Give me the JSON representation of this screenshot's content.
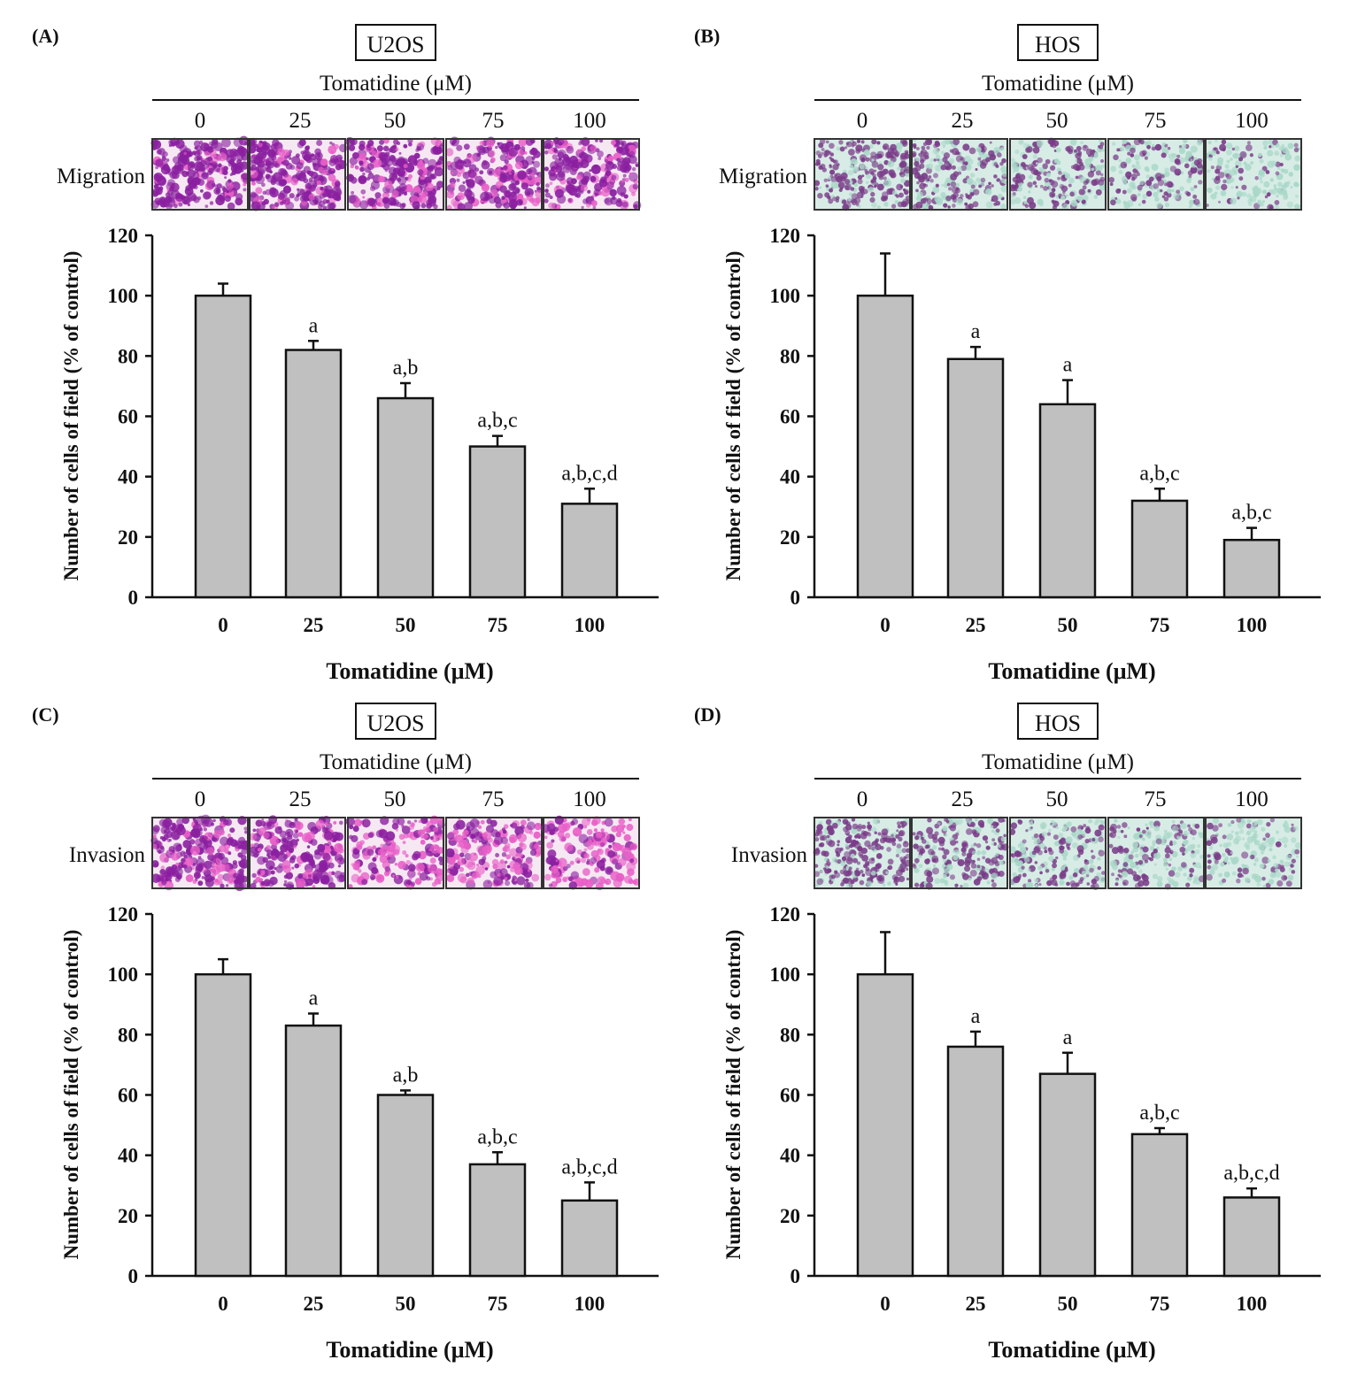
{
  "figure": {
    "treatment_label": "Tomatidine (μM)",
    "concentration_labels": [
      "0",
      "25",
      "50",
      "75",
      "100"
    ]
  },
  "colors": {
    "bar_fill": "#c0c0c0",
    "u2os_stain_dark": "#8a1fa0",
    "u2os_stain_light": "#e85fc8",
    "hos_stain_dark": "#7a3c88",
    "hos_stain_light": "#a9d8c8"
  },
  "panels": [
    {
      "label": "(A)",
      "cell_line": "U2OS",
      "assay": "Migration",
      "stain": "u2os",
      "image_density": [
        0.9,
        0.85,
        0.75,
        0.7,
        0.72
      ]
    },
    {
      "label": "(B)",
      "cell_line": "HOS",
      "assay": "Migration",
      "stain": "hos",
      "image_density": [
        0.8,
        0.7,
        0.6,
        0.45,
        0.35
      ]
    },
    {
      "label": "(C)",
      "cell_line": "U2OS",
      "assay": "Invasion",
      "stain": "u2os",
      "image_density": [
        0.8,
        0.75,
        0.45,
        0.5,
        0.35
      ]
    },
    {
      "label": "(D)",
      "cell_line": "HOS",
      "assay": "Invasion",
      "stain": "hos",
      "image_density": [
        0.85,
        0.65,
        0.6,
        0.5,
        0.35
      ]
    }
  ],
  "chart_data": [
    {
      "type": "bar",
      "panel": "(A)",
      "title": "U2OS Migration",
      "categories": [
        "0",
        "25",
        "50",
        "75",
        "100"
      ],
      "values": [
        100,
        82,
        66,
        50,
        31
      ],
      "errors": [
        4,
        3,
        5,
        3.5,
        5
      ],
      "significance": [
        "",
        "a",
        "a,b",
        "a,b,c",
        "a,b,c,d"
      ],
      "xlabel": "Tomatidine (μM)",
      "ylabel": "Number of cells of field (% of control)",
      "ylim": [
        0,
        120
      ],
      "yticks": [
        "0",
        "20",
        "40",
        "60",
        "80",
        "100",
        "120"
      ]
    },
    {
      "type": "bar",
      "panel": "(B)",
      "title": "HOS Migration",
      "categories": [
        "0",
        "25",
        "50",
        "75",
        "100"
      ],
      "values": [
        100,
        79,
        64,
        32,
        19
      ],
      "errors": [
        14,
        4,
        8,
        4,
        4
      ],
      "significance": [
        "",
        "a",
        "a",
        "a,b,c",
        "a,b,c"
      ],
      "xlabel": "Tomatidine (μM)",
      "ylabel": "Number of cells of field (% of control)",
      "ylim": [
        0,
        120
      ],
      "yticks": [
        "0",
        "20",
        "40",
        "60",
        "80",
        "100",
        "120"
      ]
    },
    {
      "type": "bar",
      "panel": "(C)",
      "title": "U2OS Invasion",
      "categories": [
        "0",
        "25",
        "50",
        "75",
        "100"
      ],
      "values": [
        100,
        83,
        60,
        37,
        25
      ],
      "errors": [
        5,
        4,
        1.5,
        4,
        6
      ],
      "significance": [
        "",
        "a",
        "a,b",
        "a,b,c",
        "a,b,c,d"
      ],
      "xlabel": "Tomatidine (μM)",
      "ylabel": "Number of cells of field (% of control)",
      "ylim": [
        0,
        120
      ],
      "yticks": [
        "0",
        "20",
        "40",
        "60",
        "80",
        "100",
        "120"
      ]
    },
    {
      "type": "bar",
      "panel": "(D)",
      "title": "HOS Invasion",
      "categories": [
        "0",
        "25",
        "50",
        "75",
        "100"
      ],
      "values": [
        100,
        76,
        67,
        47,
        26
      ],
      "errors": [
        14,
        5,
        7,
        2,
        3
      ],
      "significance": [
        "",
        "a",
        "a",
        "a,b,c",
        "a,b,c,d"
      ],
      "xlabel": "Tomatidine (μM)",
      "ylabel": "Number of cells of field (% of control)",
      "ylim": [
        0,
        120
      ],
      "yticks": [
        "0",
        "20",
        "40",
        "60",
        "80",
        "100",
        "120"
      ]
    }
  ]
}
